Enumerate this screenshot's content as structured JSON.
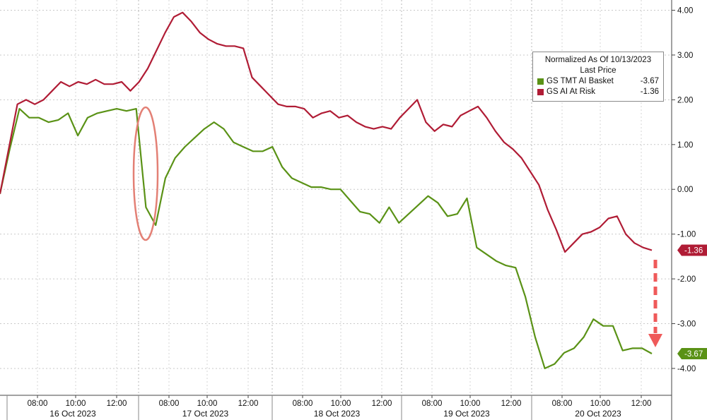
{
  "chart_data": {
    "type": "line",
    "title": "",
    "xlabel": "",
    "ylabel": "",
    "ylim": [
      -4.6,
      4.15
    ],
    "y_ticks": [
      "4.00",
      "3.00",
      "2.00",
      "1.00",
      "0.00",
      "-1.00",
      "-2.00",
      "-3.00",
      "-4.00"
    ],
    "y_tick_values": [
      4,
      3,
      2,
      1,
      0,
      -1,
      -2,
      -3,
      -4
    ],
    "grid": true,
    "axis_side": "right",
    "legend_position": "top-right",
    "legend": {
      "title_line1": "Normalized As Of 10/13/2023",
      "title_line2": "Last Price"
    },
    "days": [
      {
        "label": "16 Oct 2023",
        "times": [
          "08:00",
          "10:00",
          "12:00"
        ]
      },
      {
        "label": "17 Oct 2023",
        "times": [
          "08:00",
          "10:00",
          "12:00"
        ]
      },
      {
        "label": "18 Oct 2023",
        "times": [
          "08:00",
          "10:00",
          "12:00"
        ]
      },
      {
        "label": "19 Oct 2023",
        "times": [
          "08:00",
          "10:00",
          "12:00"
        ]
      },
      {
        "label": "20 Oct 2023",
        "times": [
          "08:00",
          "10:00",
          "12:00"
        ]
      }
    ],
    "series": [
      {
        "name": "GS TMT AI Basket",
        "last_label": "-3.67",
        "tag": "-3.67",
        "color": "#5a9216",
        "values": [
          -0.1,
          0.9,
          1.8,
          1.6,
          1.6,
          1.5,
          1.55,
          1.7,
          1.2,
          1.6,
          1.7,
          1.75,
          1.8,
          1.75,
          1.8,
          -0.4,
          -0.8,
          0.25,
          0.7,
          0.95,
          1.15,
          1.35,
          1.5,
          1.35,
          1.05,
          0.95,
          0.85,
          0.85,
          0.95,
          0.5,
          0.25,
          0.15,
          0.05,
          0.05,
          0.0,
          0.0,
          -0.25,
          -0.5,
          -0.55,
          -0.75,
          -0.4,
          -0.75,
          -0.55,
          -0.35,
          -0.15,
          -0.3,
          -0.6,
          -0.55,
          -0.2,
          -1.3,
          -1.45,
          -1.6,
          -1.7,
          -1.75,
          -2.4,
          -3.3,
          -4.0,
          -3.9,
          -3.65,
          -3.55,
          -3.3,
          -2.9,
          -3.05,
          -3.05,
          -3.6,
          -3.55,
          -3.55,
          -3.67
        ]
      },
      {
        "name": "GS AI At Risk",
        "last_label": "-1.36",
        "tag": "-1.36",
        "color": "#b01c35",
        "values": [
          -0.1,
          0.9,
          1.9,
          2.0,
          1.9,
          2.0,
          2.2,
          2.4,
          2.3,
          2.4,
          2.35,
          2.45,
          2.35,
          2.35,
          2.4,
          2.2,
          2.4,
          2.7,
          3.1,
          3.5,
          3.85,
          3.95,
          3.75,
          3.5,
          3.35,
          3.25,
          3.2,
          3.2,
          3.15,
          2.5,
          2.3,
          2.1,
          1.9,
          1.85,
          1.85,
          1.8,
          1.6,
          1.7,
          1.75,
          1.6,
          1.65,
          1.5,
          1.4,
          1.35,
          1.4,
          1.35,
          1.6,
          1.8,
          2.0,
          1.5,
          1.3,
          1.45,
          1.4,
          1.65,
          1.75,
          1.85,
          1.6,
          1.3,
          1.05,
          0.9,
          0.7,
          0.4,
          0.1,
          -0.45,
          -0.9,
          -1.4,
          -1.2,
          -1.0,
          -0.95,
          -0.85,
          -0.65,
          -0.6,
          -1.0,
          -1.2,
          -1.3,
          -1.36
        ]
      }
    ]
  }
}
